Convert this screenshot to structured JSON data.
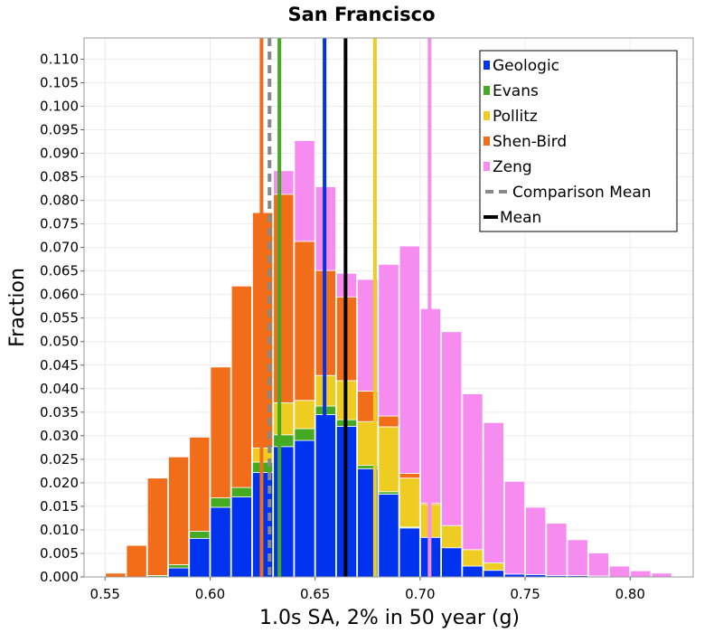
{
  "chart_data": {
    "type": "bar",
    "stacked": true,
    "title": "San Francisco",
    "xlabel": "1.0s SA, 2% in 50 year (g)",
    "ylabel": "Fraction",
    "xlim": [
      0.54,
      0.83
    ],
    "ylim": [
      0,
      0.1145
    ],
    "bin_width": 0.01,
    "x_ticks": [
      0.55,
      0.6,
      0.65,
      0.7,
      0.75,
      0.8
    ],
    "x_tick_labels": [
      "0.55",
      "0.60",
      "0.65",
      "0.70",
      "0.75",
      "0.80"
    ],
    "y_ticks": [
      0.0,
      0.005,
      0.01,
      0.015,
      0.02,
      0.025,
      0.03,
      0.035,
      0.04,
      0.045,
      0.05,
      0.055,
      0.06,
      0.065,
      0.07,
      0.075,
      0.08,
      0.085,
      0.09,
      0.095,
      0.1,
      0.105,
      0.11
    ],
    "y_tick_labels": [
      "0.000",
      "0.005",
      "0.010",
      "0.015",
      "0.020",
      "0.025",
      "0.030",
      "0.035",
      "0.040",
      "0.045",
      "0.050",
      "0.055",
      "0.060",
      "0.065",
      "0.070",
      "0.075",
      "0.080",
      "0.085",
      "0.090",
      "0.095",
      "0.100",
      "0.105",
      "0.110"
    ],
    "bin_centers": [
      0.555,
      0.565,
      0.575,
      0.585,
      0.595,
      0.605,
      0.615,
      0.625,
      0.635,
      0.645,
      0.655,
      0.665,
      0.675,
      0.685,
      0.695,
      0.705,
      0.715,
      0.725,
      0.735,
      0.745,
      0.755,
      0.765,
      0.775,
      0.785,
      0.795,
      0.805,
      0.815
    ],
    "series": [
      {
        "name": "Geologic",
        "color": "#0033ee",
        "values": [
          0.0,
          0.0,
          0.0,
          0.0019,
          0.0082,
          0.0148,
          0.017,
          0.0222,
          0.0277,
          0.029,
          0.0345,
          0.032,
          0.023,
          0.0176,
          0.0104,
          0.0084,
          0.0062,
          0.0023,
          0.0014,
          0.0006,
          0.0005,
          0.0003,
          0.0003,
          0.0002,
          0.0,
          0.0,
          0.0
        ]
      },
      {
        "name": "Evans",
        "color": "#44aa22",
        "values": [
          0.0,
          0.0,
          0.0003,
          0.0007,
          0.0015,
          0.002,
          0.002,
          0.0022,
          0.0025,
          0.0025,
          0.0018,
          0.0014,
          0.0007,
          0.0005,
          0.0002,
          0.0,
          0.0,
          0.0,
          0.0,
          0.0,
          0.0,
          0.0,
          0.0,
          0.0,
          0.0,
          0.0,
          0.0
        ]
      },
      {
        "name": "Pollitz",
        "color": "#eecc22",
        "values": [
          0.0,
          0.0,
          0.0,
          0.0,
          0.0,
          0.0,
          0.0,
          0.003,
          0.0068,
          0.006,
          0.0065,
          0.0083,
          0.0093,
          0.0138,
          0.0104,
          0.007,
          0.0047,
          0.0035,
          0.0016,
          0.0,
          0.0,
          0.0,
          0.0,
          0.0,
          0.0,
          0.0,
          0.0
        ]
      },
      {
        "name": "Shen-Bird",
        "color": "#f26d1a",
        "values": [
          0.0008,
          0.0067,
          0.0207,
          0.0229,
          0.02,
          0.0278,
          0.0428,
          0.05,
          0.0443,
          0.0338,
          0.0223,
          0.0178,
          0.0065,
          0.0023,
          0.001,
          0.0003,
          0.0,
          0.0,
          0.0,
          0.0,
          0.0,
          0.0,
          0.0,
          0.0,
          0.0,
          0.0,
          0.0
        ]
      },
      {
        "name": "Zeng",
        "color": "#f68cf0",
        "values": [
          0.0,
          0.0,
          0.0,
          0.0,
          0.0,
          0.0,
          0.0,
          0.0,
          0.005,
          0.0214,
          0.0178,
          0.005,
          0.0237,
          0.0322,
          0.0483,
          0.0413,
          0.0412,
          0.0331,
          0.0298,
          0.0197,
          0.0143,
          0.0111,
          0.0076,
          0.0049,
          0.0023,
          0.0013,
          0.0008
        ]
      }
    ],
    "vertical_lines": [
      {
        "series": "Shen-Bird",
        "x": 0.6245,
        "color": "#f26d1a",
        "style": "solid"
      },
      {
        "series": "Comparison Mean",
        "x": 0.6283,
        "color": "#888888",
        "style": "dashed"
      },
      {
        "series": "Evans",
        "x": 0.633,
        "color": "#44aa22",
        "style": "solid"
      },
      {
        "series": "Geologic",
        "x": 0.6545,
        "color": "#0033ee",
        "style": "solid"
      },
      {
        "series": "Mean",
        "x": 0.6645,
        "color": "#000000",
        "style": "solid"
      },
      {
        "series": "Pollitz",
        "x": 0.6785,
        "color": "#eecc22",
        "style": "solid"
      },
      {
        "series": "Zeng",
        "x": 0.7045,
        "color": "#f68cf0",
        "style": "solid"
      }
    ],
    "legend": {
      "position": "top-right",
      "entries": [
        {
          "label": "Geologic",
          "kind": "box",
          "color": "#0033ee"
        },
        {
          "label": "Evans",
          "kind": "box",
          "color": "#44aa22"
        },
        {
          "label": "Pollitz",
          "kind": "box",
          "color": "#eecc22"
        },
        {
          "label": "Shen-Bird",
          "kind": "box",
          "color": "#f26d1a"
        },
        {
          "label": "Zeng",
          "kind": "box",
          "color": "#f68cf0"
        },
        {
          "label": "Comparison Mean",
          "kind": "dashed-line",
          "color": "#888888"
        },
        {
          "label": "Mean",
          "kind": "line",
          "color": "#000000"
        }
      ]
    },
    "grid": true
  }
}
